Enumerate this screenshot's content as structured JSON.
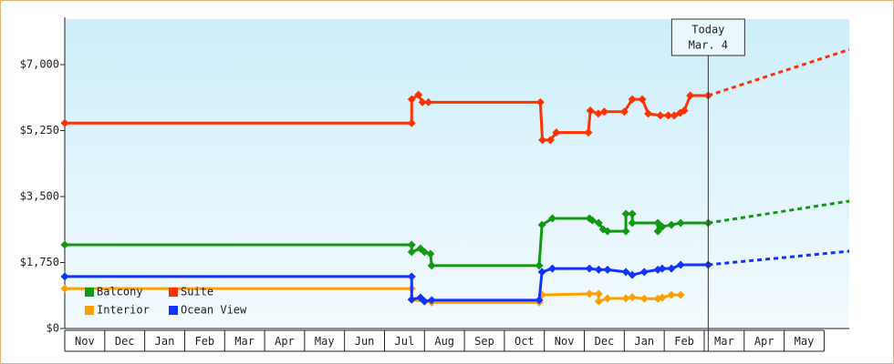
{
  "chart_data": {
    "type": "step-line",
    "ylim": [
      0,
      8207
    ],
    "yticks": [
      {
        "value": 0,
        "label": "$0"
      },
      {
        "value": 1750,
        "label": "$1,750"
      },
      {
        "value": 3500,
        "label": "$3,500"
      },
      {
        "value": 5250,
        "label": "$5,250"
      },
      {
        "value": 7000,
        "label": "$7,000"
      }
    ],
    "xlim": [
      0,
      19.63
    ],
    "months": [
      "Nov",
      "Dec",
      "Jan",
      "Feb",
      "Mar",
      "Apr",
      "May",
      "Jun",
      "Jul",
      "Aug",
      "Sep",
      "Oct",
      "Nov",
      "Dec",
      "Jan",
      "Feb",
      "Mar",
      "Apr",
      "May"
    ],
    "today": {
      "x": 16.1,
      "label": "Today",
      "date": "Mar. 4"
    },
    "legend": "lower left",
    "series": [
      {
        "name": "Balcony",
        "color": "#119911",
        "x": [
          0,
          8.68,
          8.68,
          8.9,
          9.0,
          9.15,
          9.18,
          11.87,
          11.94,
          12.2,
          13.13,
          13.2,
          13.36,
          13.47,
          13.58,
          14.04,
          14.04,
          14.2,
          14.2,
          14.84,
          14.84,
          14.95,
          15.18,
          15.41,
          16.1
        ],
        "values": [
          2220,
          2220,
          2030,
          2120,
          2030,
          1980,
          1670,
          1670,
          2750,
          2920,
          2920,
          2870,
          2800,
          2630,
          2580,
          2580,
          3040,
          3040,
          2800,
          2800,
          2580,
          2700,
          2750,
          2800,
          2800
        ],
        "forecast": 3380
      },
      {
        "name": "Suite",
        "color": "#ff3300",
        "x": [
          0,
          8.68,
          8.68,
          8.85,
          8.95,
          9.1,
          11.9,
          11.95,
          12.15,
          12.3,
          13.1,
          13.15,
          13.35,
          13.5,
          14.0,
          14.2,
          14.45,
          14.6,
          14.9,
          15.1,
          15.25,
          15.4,
          15.5,
          15.65,
          16.1
        ],
        "values": [
          5450,
          5450,
          6080,
          6200,
          6000,
          6000,
          6000,
          5000,
          5000,
          5200,
          5200,
          5780,
          5700,
          5750,
          5750,
          6080,
          6080,
          5700,
          5650,
          5650,
          5650,
          5720,
          5780,
          6180,
          6180
        ],
        "forecast": 7400
      },
      {
        "name": "Interior",
        "color": "#ffa000",
        "x": [
          0,
          8.68,
          8.68,
          9.0,
          9.18,
          11.87,
          11.94,
          13.13,
          13.36,
          13.36,
          13.58,
          14.04,
          14.2,
          14.5,
          14.84,
          14.95,
          15.18,
          15.41
        ],
        "values": [
          1060,
          1060,
          760,
          720,
          690,
          690,
          890,
          920,
          920,
          720,
          800,
          800,
          830,
          790,
          790,
          820,
          890,
          890
        ]
      },
      {
        "name": "Ocean View",
        "color": "#1133ff",
        "x": [
          0,
          8.68,
          8.68,
          8.9,
          9.0,
          9.18,
          11.87,
          11.94,
          12.2,
          13.13,
          13.36,
          13.58,
          14.04,
          14.2,
          14.5,
          14.84,
          14.95,
          15.18,
          15.41,
          16.1
        ],
        "values": [
          1380,
          1380,
          770,
          820,
          720,
          750,
          750,
          1500,
          1590,
          1590,
          1560,
          1560,
          1500,
          1420,
          1500,
          1560,
          1590,
          1590,
          1690,
          1690
        ],
        "forecast": 2050
      }
    ]
  }
}
